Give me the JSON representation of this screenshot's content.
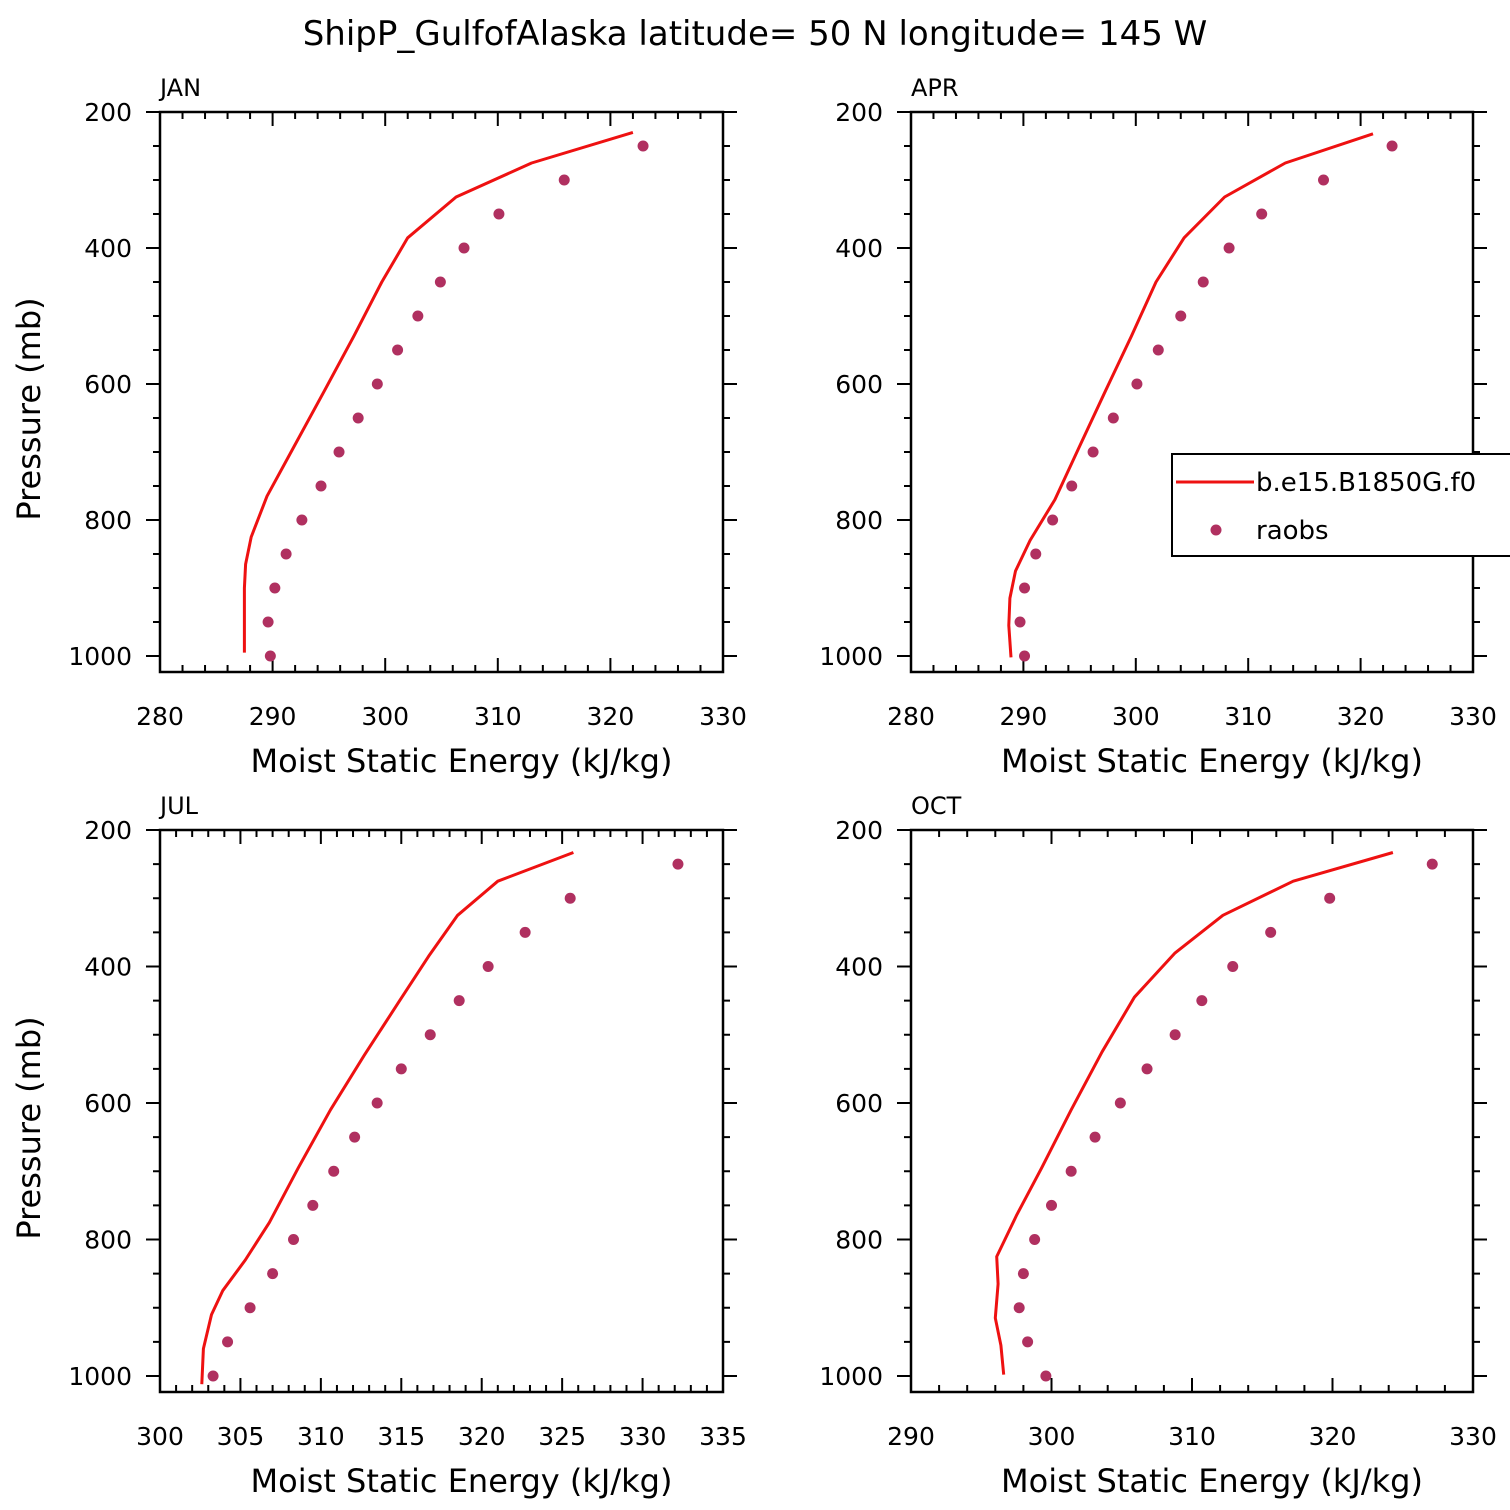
{
  "figure": {
    "title": "ShipP_GulfofAlaska  latitude= 50 N longitude= 145 W"
  },
  "colors": {
    "model": "#ee1111",
    "raobs": "#b03060",
    "axis": "#000000"
  },
  "legend": {
    "placement": "right-middle of APR panel",
    "entries": [
      {
        "label": "b.e15.B1850G.f0",
        "style": "line"
      },
      {
        "label": "raobs",
        "style": "dot"
      }
    ]
  },
  "chart_data": [
    {
      "type": "line",
      "panel": "JAN",
      "xlabel": "Moist Static Energy (kJ/kg)",
      "ylabel": "Pressure (mb)",
      "xlim": [
        280,
        330
      ],
      "ylim": [
        1000,
        200
      ],
      "y_reversed": true,
      "xticks": [
        280,
        290,
        300,
        310,
        320,
        330
      ],
      "yticks": [
        200,
        400,
        600,
        800,
        1000
      ],
      "x_minor": 2,
      "y_minor": 50,
      "series": [
        {
          "name": "b.e15.B1850G.f0",
          "style": "line",
          "points": [
            [
              322.0,
              230
            ],
            [
              313.0,
              275
            ],
            [
              306.3,
              325
            ],
            [
              302.0,
              385
            ],
            [
              299.7,
              450
            ],
            [
              297.2,
              530
            ],
            [
              294.6,
              610
            ],
            [
              291.8,
              695
            ],
            [
              289.5,
              765
            ],
            [
              288.1,
              825
            ],
            [
              287.6,
              865
            ],
            [
              287.5,
              900
            ],
            [
              287.5,
              945
            ],
            [
              287.5,
              995
            ]
          ]
        },
        {
          "name": "raobs",
          "style": "dot",
          "points": [
            [
              322.9,
              250
            ],
            [
              315.9,
              300
            ],
            [
              310.1,
              350
            ],
            [
              307.0,
              400
            ],
            [
              304.9,
              450
            ],
            [
              302.9,
              500
            ],
            [
              301.1,
              550
            ],
            [
              299.3,
              600
            ],
            [
              297.6,
              650
            ],
            [
              295.9,
              700
            ],
            [
              294.3,
              750
            ],
            [
              292.6,
              800
            ],
            [
              291.2,
              850
            ],
            [
              290.2,
              900
            ],
            [
              289.6,
              950
            ],
            [
              289.8,
              1000
            ]
          ]
        }
      ]
    },
    {
      "type": "line",
      "panel": "APR",
      "xlabel": "Moist Static Energy (kJ/kg)",
      "ylabel": "",
      "xlim": [
        280,
        330
      ],
      "ylim": [
        1000,
        200
      ],
      "y_reversed": true,
      "xticks": [
        280,
        290,
        300,
        310,
        320,
        330
      ],
      "yticks": [
        200,
        400,
        600,
        800,
        1000
      ],
      "x_minor": 2,
      "y_minor": 50,
      "series": [
        {
          "name": "b.e15.B1850G.f0",
          "style": "line",
          "points": [
            [
              321.1,
              232
            ],
            [
              313.3,
              275
            ],
            [
              307.9,
              325
            ],
            [
              304.3,
              385
            ],
            [
              301.8,
              450
            ],
            [
              299.6,
              530
            ],
            [
              297.3,
              610
            ],
            [
              294.9,
              695
            ],
            [
              292.8,
              770
            ],
            [
              290.6,
              830
            ],
            [
              289.3,
              875
            ],
            [
              288.8,
              915
            ],
            [
              288.7,
              955
            ],
            [
              288.9,
              1002
            ]
          ]
        },
        {
          "name": "raobs",
          "style": "dot",
          "points": [
            [
              322.8,
              250
            ],
            [
              316.7,
              300
            ],
            [
              311.2,
              350
            ],
            [
              308.3,
              400
            ],
            [
              306.0,
              450
            ],
            [
              304.0,
              500
            ],
            [
              302.0,
              550
            ],
            [
              300.1,
              600
            ],
            [
              298.0,
              650
            ],
            [
              296.2,
              700
            ],
            [
              294.3,
              750
            ],
            [
              292.6,
              800
            ],
            [
              291.1,
              850
            ],
            [
              290.1,
              900
            ],
            [
              289.7,
              950
            ],
            [
              290.1,
              1000
            ]
          ]
        }
      ]
    },
    {
      "type": "line",
      "panel": "JUL",
      "xlabel": "Moist Static Energy (kJ/kg)",
      "ylabel": "Pressure (mb)",
      "xlim": [
        300,
        335
      ],
      "ylim": [
        1000,
        200
      ],
      "y_reversed": true,
      "xticks": [
        300,
        305,
        310,
        315,
        320,
        325,
        330,
        335
      ],
      "yticks": [
        200,
        400,
        600,
        800,
        1000
      ],
      "x_minor": 1,
      "y_minor": 50,
      "series": [
        {
          "name": "b.e15.B1850G.f0",
          "style": "line",
          "points": [
            [
              325.7,
              233
            ],
            [
              321.0,
              275
            ],
            [
              318.5,
              325
            ],
            [
              316.7,
              385
            ],
            [
              314.9,
              450
            ],
            [
              312.7,
              530
            ],
            [
              310.6,
              610
            ],
            [
              308.6,
              695
            ],
            [
              306.8,
              775
            ],
            [
              305.3,
              830
            ],
            [
              303.9,
              875
            ],
            [
              303.2,
              910
            ],
            [
              302.7,
              960
            ],
            [
              302.6,
              1012
            ]
          ]
        },
        {
          "name": "raobs",
          "style": "dot",
          "points": [
            [
              332.2,
              250
            ],
            [
              325.5,
              300
            ],
            [
              322.7,
              350
            ],
            [
              320.4,
              400
            ],
            [
              318.6,
              450
            ],
            [
              316.8,
              500
            ],
            [
              315.0,
              550
            ],
            [
              313.5,
              600
            ],
            [
              312.1,
              650
            ],
            [
              310.8,
              700
            ],
            [
              309.5,
              750
            ],
            [
              308.3,
              800
            ],
            [
              307.0,
              850
            ],
            [
              305.6,
              900
            ],
            [
              304.2,
              950
            ],
            [
              303.3,
              1000
            ]
          ]
        }
      ]
    },
    {
      "type": "line",
      "panel": "OCT",
      "xlabel": "Moist Static Energy (kJ/kg)",
      "ylabel": "",
      "xlim": [
        290,
        330
      ],
      "ylim": [
        1000,
        200
      ],
      "y_reversed": true,
      "xticks": [
        290,
        300,
        310,
        320,
        330
      ],
      "yticks": [
        200,
        400,
        600,
        800,
        1000
      ],
      "x_minor": 2,
      "y_minor": 50,
      "series": [
        {
          "name": "b.e15.B1850G.f0",
          "style": "line",
          "points": [
            [
              324.3,
              233
            ],
            [
              317.2,
              275
            ],
            [
              312.2,
              325
            ],
            [
              308.8,
              380
            ],
            [
              305.9,
              445
            ],
            [
              303.6,
              525
            ],
            [
              301.4,
              610
            ],
            [
              299.3,
              695
            ],
            [
              297.5,
              765
            ],
            [
              296.1,
              825
            ],
            [
              296.2,
              865
            ],
            [
              296.0,
              915
            ],
            [
              296.4,
              955
            ],
            [
              296.6,
              998
            ]
          ]
        },
        {
          "name": "raobs",
          "style": "dot",
          "points": [
            [
              327.1,
              250
            ],
            [
              319.8,
              300
            ],
            [
              315.6,
              350
            ],
            [
              312.9,
              400
            ],
            [
              310.7,
              450
            ],
            [
              308.8,
              500
            ],
            [
              306.8,
              550
            ],
            [
              304.9,
              600
            ],
            [
              303.1,
              650
            ],
            [
              301.4,
              700
            ],
            [
              300.0,
              750
            ],
            [
              298.8,
              800
            ],
            [
              298.0,
              850
            ],
            [
              297.7,
              900
            ],
            [
              298.3,
              950
            ],
            [
              299.6,
              1000
            ]
          ]
        }
      ]
    }
  ]
}
